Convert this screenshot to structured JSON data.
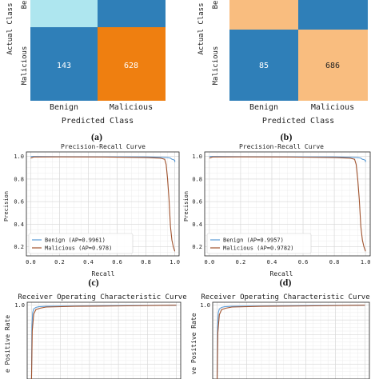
{
  "colors": {
    "benign": "#5b9bd5",
    "malicious": "#a0522d",
    "cm_light": "#aee6ef",
    "cm_mid": "#2f7fb8",
    "cm_orange": "#ef7f10",
    "cm_peach": "#f9bd7f",
    "grid": "#d7d7d7"
  },
  "chart_data": [
    {
      "type": "heatmap",
      "panel_label": "(a)",
      "xlabel": "Predicted Class",
      "ylabel": "Actual Class",
      "x_tick_labels": [
        "Benign",
        "Malicious"
      ],
      "y_tick_labels": [
        "Be",
        "Malicious"
      ],
      "rows": [
        {
          "row": "Benign",
          "cells": [
            {
              "value": null,
              "color": "#aee6ef"
            },
            {
              "value": null,
              "color": "#2f7fb8"
            }
          ]
        },
        {
          "row": "Malicious",
          "cells": [
            {
              "value": "143",
              "color": "#2f7fb8"
            },
            {
              "value": "628",
              "color": "#ef7f10"
            }
          ]
        }
      ]
    },
    {
      "type": "heatmap",
      "panel_label": "(b)",
      "xlabel": "Predicted Class",
      "ylabel": "Actual Class",
      "x_tick_labels": [
        "Benign",
        "Malicious"
      ],
      "y_tick_labels": [
        "Be",
        "Malicious"
      ],
      "rows": [
        {
          "row": "Benign",
          "cells": [
            {
              "value": null,
              "color": "#f9bd7f"
            },
            {
              "value": null,
              "color": "#2f7fb8"
            }
          ]
        },
        {
          "row": "Malicious",
          "cells": [
            {
              "value": "85",
              "color": "#2f7fb8"
            },
            {
              "value": "686",
              "color": "#f9bd7f"
            }
          ]
        }
      ]
    },
    {
      "type": "line",
      "panel_label": "(c)",
      "title": "Precision-Recall Curve",
      "xlabel": "Recall",
      "ylabel": "Precision",
      "xlim": [
        -0.03,
        1.03
      ],
      "ylim": [
        0.12,
        1.04
      ],
      "x_ticks": [
        "0.0",
        "0.2",
        "0.4",
        "0.6",
        "0.8",
        "1.0"
      ],
      "y_ticks": [
        "0.2",
        "0.4",
        "0.6",
        "0.8",
        "1.0"
      ],
      "grid": true,
      "legend_position": "bottom-left",
      "series": [
        {
          "name": "Benign (AP=0.9961)",
          "x": [
            0.0,
            0.02,
            0.2,
            0.5,
            0.8,
            0.9,
            0.95,
            0.97,
            0.98,
            0.99,
            1.0,
            1.0
          ],
          "y": [
            1.0,
            1.0,
            0.998,
            0.997,
            0.996,
            0.993,
            0.99,
            0.985,
            0.975,
            0.972,
            0.965,
            0.95
          ]
        },
        {
          "name": "Malicious (AP=0.978)",
          "x": [
            0.0,
            0.02,
            0.2,
            0.5,
            0.8,
            0.9,
            0.93,
            0.94,
            0.95,
            0.96,
            0.965,
            0.97,
            0.98,
            0.99,
            1.0
          ],
          "y": [
            0.985,
            0.995,
            0.996,
            0.995,
            0.99,
            0.985,
            0.975,
            0.93,
            0.8,
            0.62,
            0.5,
            0.38,
            0.26,
            0.2,
            0.16
          ]
        }
      ]
    },
    {
      "type": "line",
      "panel_label": "(d)",
      "title": "Precision-Recall Curve",
      "xlabel": "Recall",
      "ylabel": "Precision",
      "xlim": [
        -0.03,
        1.03
      ],
      "ylim": [
        0.12,
        1.04
      ],
      "x_ticks": [
        "0.0",
        "0.2",
        "0.4",
        "0.6",
        "0.8",
        "1.0"
      ],
      "y_ticks": [
        "0.2",
        "0.4",
        "0.6",
        "0.8",
        "1.0"
      ],
      "grid": true,
      "legend_position": "bottom-left",
      "series": [
        {
          "name": "Benign (AP=0.9957)",
          "x": [
            0.0,
            0.02,
            0.2,
            0.5,
            0.8,
            0.9,
            0.95,
            0.97,
            0.98,
            0.99,
            1.0,
            1.0
          ],
          "y": [
            1.0,
            1.0,
            0.998,
            0.997,
            0.996,
            0.993,
            0.99,
            0.985,
            0.975,
            0.972,
            0.965,
            0.95
          ]
        },
        {
          "name": "Malicious (AP=0.9782)",
          "x": [
            0.0,
            0.02,
            0.2,
            0.5,
            0.8,
            0.9,
            0.93,
            0.94,
            0.95,
            0.96,
            0.965,
            0.97,
            0.98,
            0.99,
            1.0
          ],
          "y": [
            0.985,
            0.995,
            0.996,
            0.995,
            0.99,
            0.985,
            0.975,
            0.93,
            0.8,
            0.62,
            0.5,
            0.38,
            0.26,
            0.2,
            0.16
          ]
        }
      ]
    },
    {
      "type": "line",
      "panel_label": "",
      "title": "Receiver Operating Characteristic Curve",
      "ylabel": "e Positive Rate",
      "xlim": [
        -0.03,
        1.03
      ],
      "ylim": [
        0.0,
        1.04
      ],
      "grid": true,
      "series": [
        {
          "name": "",
          "x": [
            0.0,
            0.003,
            0.008,
            0.015,
            0.03,
            0.05,
            0.1,
            0.3,
            0.6,
            1.0
          ],
          "y": [
            0.0,
            0.72,
            0.9,
            0.95,
            0.97,
            0.98,
            0.985,
            0.99,
            0.995,
            1.0
          ]
        },
        {
          "name": "",
          "x": [
            0.0,
            0.005,
            0.015,
            0.03,
            0.06,
            0.1,
            0.3,
            0.6,
            1.0
          ],
          "y": [
            0.0,
            0.65,
            0.88,
            0.94,
            0.96,
            0.975,
            0.985,
            0.99,
            1.0
          ]
        }
      ]
    },
    {
      "type": "line",
      "panel_label": "",
      "title": "Receiver Operating Characteristic Curve",
      "ylabel": "ve Positive Rate",
      "xlim": [
        -0.03,
        1.03
      ],
      "ylim": [
        0.0,
        1.04
      ],
      "grid": true,
      "series": [
        {
          "name": "",
          "x": [
            0.0,
            0.003,
            0.008,
            0.015,
            0.03,
            0.05,
            0.1,
            0.3,
            0.6,
            1.0
          ],
          "y": [
            0.0,
            0.7,
            0.9,
            0.95,
            0.97,
            0.98,
            0.985,
            0.99,
            0.995,
            1.0
          ]
        },
        {
          "name": "",
          "x": [
            0.0,
            0.005,
            0.015,
            0.03,
            0.06,
            0.1,
            0.3,
            0.6,
            1.0
          ],
          "y": [
            0.0,
            0.63,
            0.87,
            0.94,
            0.96,
            0.975,
            0.985,
            0.99,
            1.0
          ]
        }
      ]
    }
  ]
}
